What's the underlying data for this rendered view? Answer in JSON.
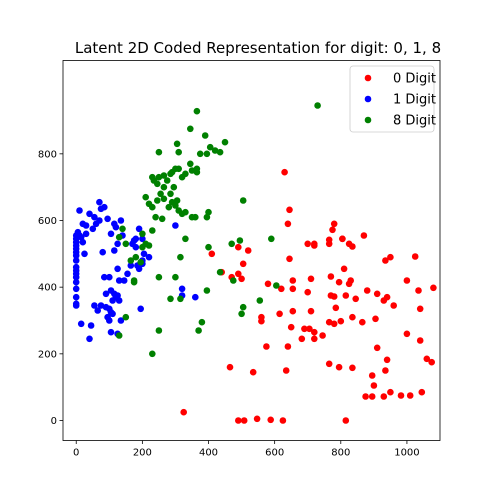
{
  "chart_data": {
    "type": "scatter",
    "title": "Latent 2D Coded Representation for digit: 0, 1, 8",
    "xlabel": "",
    "ylabel": "",
    "xlim": [
      -40,
      1100
    ],
    "ylim": [
      -60,
      1080
    ],
    "xticks": [
      0,
      200,
      400,
      600,
      800,
      1000
    ],
    "yticks": [
      0,
      200,
      400,
      600,
      800
    ],
    "legend_position": "top-right",
    "series": [
      {
        "name": "0 Digit",
        "color": "#ff0000",
        "points": [
          [
            325,
            25
          ],
          [
            490,
            0
          ],
          [
            508,
            0
          ],
          [
            547,
            5
          ],
          [
            588,
            2
          ],
          [
            625,
            0
          ],
          [
            815,
            0
          ],
          [
            875,
            72
          ],
          [
            895,
            72
          ],
          [
            930,
            72
          ],
          [
            950,
            85
          ],
          [
            982,
            75
          ],
          [
            1010,
            75
          ],
          [
            1045,
            85
          ],
          [
            900,
            105
          ],
          [
            895,
            135
          ],
          [
            935,
            150
          ],
          [
            940,
            182
          ],
          [
            910,
            218
          ],
          [
            1060,
            185
          ],
          [
            1075,
            175
          ],
          [
            1040,
            240
          ],
          [
            1000,
            260
          ],
          [
            1040,
            335
          ],
          [
            465,
            160
          ],
          [
            535,
            145
          ],
          [
            635,
            150
          ],
          [
            765,
            170
          ],
          [
            795,
            160
          ],
          [
            835,
            158
          ],
          [
            575,
            222
          ],
          [
            640,
            222
          ],
          [
            682,
            245
          ],
          [
            690,
            275
          ],
          [
            705,
            275
          ],
          [
            720,
            245
          ],
          [
            720,
            265
          ],
          [
            745,
            255
          ],
          [
            650,
            280
          ],
          [
            780,
            290
          ],
          [
            765,
            295
          ],
          [
            800,
            298
          ],
          [
            865,
            295
          ],
          [
            835,
            310
          ],
          [
            905,
            305
          ],
          [
            560,
            298
          ],
          [
            560,
            310
          ],
          [
            615,
            320
          ],
          [
            655,
            328
          ],
          [
            710,
            328
          ],
          [
            785,
            338
          ],
          [
            580,
            410
          ],
          [
            620,
            395
          ],
          [
            655,
            395
          ],
          [
            655,
            420
          ],
          [
            700,
            385
          ],
          [
            710,
            425
          ],
          [
            770,
            375
          ],
          [
            780,
            372
          ],
          [
            795,
            415
          ],
          [
            815,
            375
          ],
          [
            845,
            365
          ],
          [
            825,
            410
          ],
          [
            830,
            420
          ],
          [
            880,
            390
          ],
          [
            910,
            380
          ],
          [
            930,
            360
          ],
          [
            940,
            370
          ],
          [
            960,
            345
          ],
          [
            1000,
            420
          ],
          [
            1035,
            390
          ],
          [
            1080,
            398
          ],
          [
            1025,
            492
          ],
          [
            950,
            490
          ],
          [
            935,
            480
          ],
          [
            470,
            430
          ],
          [
            490,
            440
          ],
          [
            500,
            425
          ],
          [
            505,
            470
          ],
          [
            490,
            520
          ],
          [
            520,
            510
          ],
          [
            410,
            500
          ],
          [
            440,
            445
          ],
          [
            645,
            485
          ],
          [
            700,
            530
          ],
          [
            720,
            530
          ],
          [
            765,
            530
          ],
          [
            765,
            542
          ],
          [
            805,
            545
          ],
          [
            825,
            530
          ],
          [
            835,
            522
          ],
          [
            870,
            555
          ],
          [
            775,
            572
          ],
          [
            780,
            590
          ],
          [
            805,
            545
          ],
          [
            810,
            455
          ],
          [
            770,
            432
          ],
          [
            720,
            525
          ],
          [
            640,
            590
          ],
          [
            645,
            632
          ],
          [
            630,
            745
          ]
        ]
      },
      {
        "name": "1 Digit",
        "color": "#0000ff",
        "points": [
          [
            0,
            555
          ],
          [
            0,
            545
          ],
          [
            0,
            535
          ],
          [
            0,
            525
          ],
          [
            0,
            515
          ],
          [
            0,
            505
          ],
          [
            0,
            495
          ],
          [
            0,
            480
          ],
          [
            0,
            460
          ],
          [
            0,
            450
          ],
          [
            0,
            440
          ],
          [
            0,
            430
          ],
          [
            0,
            415
          ],
          [
            0,
            395
          ],
          [
            0,
            370
          ],
          [
            0,
            350
          ],
          [
            5,
            565
          ],
          [
            10,
            555
          ],
          [
            15,
            550
          ],
          [
            20,
            535
          ],
          [
            20,
            590
          ],
          [
            25,
            500
          ],
          [
            30,
            560
          ],
          [
            30,
            585
          ],
          [
            0,
            345
          ],
          [
            15,
            290
          ],
          [
            40,
            245
          ],
          [
            45,
            285
          ],
          [
            55,
            345
          ],
          [
            65,
            330
          ],
          [
            75,
            345
          ],
          [
            90,
            340
          ],
          [
            95,
            310
          ],
          [
            100,
            335
          ],
          [
            105,
            325
          ],
          [
            110,
            320
          ],
          [
            110,
            360
          ],
          [
            115,
            380
          ],
          [
            120,
            370
          ],
          [
            125,
            375
          ],
          [
            130,
            360
          ],
          [
            135,
            300
          ],
          [
            125,
            260
          ],
          [
            105,
            265
          ],
          [
            100,
            300
          ],
          [
            105,
            390
          ],
          [
            10,
            630
          ],
          [
            40,
            620
          ],
          [
            50,
            575
          ],
          [
            55,
            610
          ],
          [
            60,
            590
          ],
          [
            70,
            600
          ],
          [
            75,
            635
          ],
          [
            70,
            655
          ],
          [
            85,
            640
          ],
          [
            95,
            605
          ],
          [
            105,
            560
          ],
          [
            115,
            590
          ],
          [
            120,
            580
          ],
          [
            125,
            530
          ],
          [
            135,
            600
          ],
          [
            140,
            555
          ],
          [
            80,
            505
          ],
          [
            85,
            430
          ],
          [
            90,
            380
          ],
          [
            100,
            430
          ],
          [
            115,
            510
          ],
          [
            125,
            455
          ],
          [
            130,
            420
          ],
          [
            145,
            420
          ],
          [
            155,
            440
          ],
          [
            165,
            465
          ],
          [
            170,
            530
          ],
          [
            175,
            540
          ],
          [
            180,
            520
          ],
          [
            190,
            575
          ],
          [
            190,
            455
          ],
          [
            200,
            470
          ],
          [
            220,
            490
          ],
          [
            195,
            335
          ],
          [
            300,
            585
          ],
          [
            320,
            375
          ],
          [
            320,
            395
          ],
          [
            360,
            370
          ],
          [
            185,
            465
          ],
          [
            200,
            480
          ],
          [
            180,
            545
          ],
          [
            205,
            500
          ],
          [
            200,
            545
          ]
        ]
      },
      {
        "name": "8 Digit",
        "color": "#008000",
        "points": [
          [
            730,
            945
          ],
          [
            365,
            928
          ],
          [
            390,
            855
          ],
          [
            405,
            820
          ],
          [
            420,
            810
          ],
          [
            450,
            835
          ],
          [
            435,
            805
          ],
          [
            395,
            800
          ],
          [
            375,
            800
          ],
          [
            345,
            875
          ],
          [
            310,
            805
          ],
          [
            305,
            830
          ],
          [
            250,
            805
          ],
          [
            345,
            770
          ],
          [
            365,
            755
          ],
          [
            365,
            745
          ],
          [
            350,
            750
          ],
          [
            330,
            740
          ],
          [
            320,
            730
          ],
          [
            310,
            755
          ],
          [
            300,
            755
          ],
          [
            290,
            745
          ],
          [
            285,
            740
          ],
          [
            265,
            735
          ],
          [
            250,
            730
          ],
          [
            230,
            730
          ],
          [
            235,
            720
          ],
          [
            245,
            710
          ],
          [
            265,
            700
          ],
          [
            275,
            720
          ],
          [
            295,
            700
          ],
          [
            285,
            680
          ],
          [
            265,
            665
          ],
          [
            255,
            680
          ],
          [
            245,
            660
          ],
          [
            220,
            650
          ],
          [
            210,
            670
          ],
          [
            230,
            640
          ],
          [
            240,
            610
          ],
          [
            260,
            605
          ],
          [
            280,
            640
          ],
          [
            290,
            655
          ],
          [
            305,
            660
          ],
          [
            300,
            645
          ],
          [
            310,
            630
          ],
          [
            320,
            620
          ],
          [
            330,
            625
          ],
          [
            350,
            610
          ],
          [
            360,
            610
          ],
          [
            395,
            610
          ],
          [
            400,
            625
          ],
          [
            505,
            660
          ],
          [
            495,
            540
          ],
          [
            435,
            445
          ],
          [
            475,
            420
          ],
          [
            165,
            480
          ],
          [
            180,
            490
          ],
          [
            195,
            475
          ],
          [
            200,
            520
          ],
          [
            210,
            530
          ],
          [
            220,
            525
          ],
          [
            230,
            570
          ],
          [
            200,
            560
          ],
          [
            150,
            530
          ],
          [
            140,
            575
          ],
          [
            130,
            550
          ],
          [
            175,
            415
          ],
          [
            175,
            420
          ],
          [
            250,
            430
          ],
          [
            300,
            430
          ],
          [
            315,
            490
          ],
          [
            330,
            545
          ],
          [
            395,
            390
          ],
          [
            400,
            520
          ],
          [
            285,
            365
          ],
          [
            315,
            365
          ],
          [
            370,
            270
          ],
          [
            380,
            295
          ],
          [
            500,
            320
          ],
          [
            505,
            340
          ],
          [
            555,
            360
          ],
          [
            590,
            545
          ],
          [
            605,
            405
          ],
          [
            470,
            530
          ],
          [
            130,
            255
          ],
          [
            150,
            310
          ],
          [
            250,
            270
          ],
          [
            230,
            200
          ]
        ]
      }
    ]
  }
}
